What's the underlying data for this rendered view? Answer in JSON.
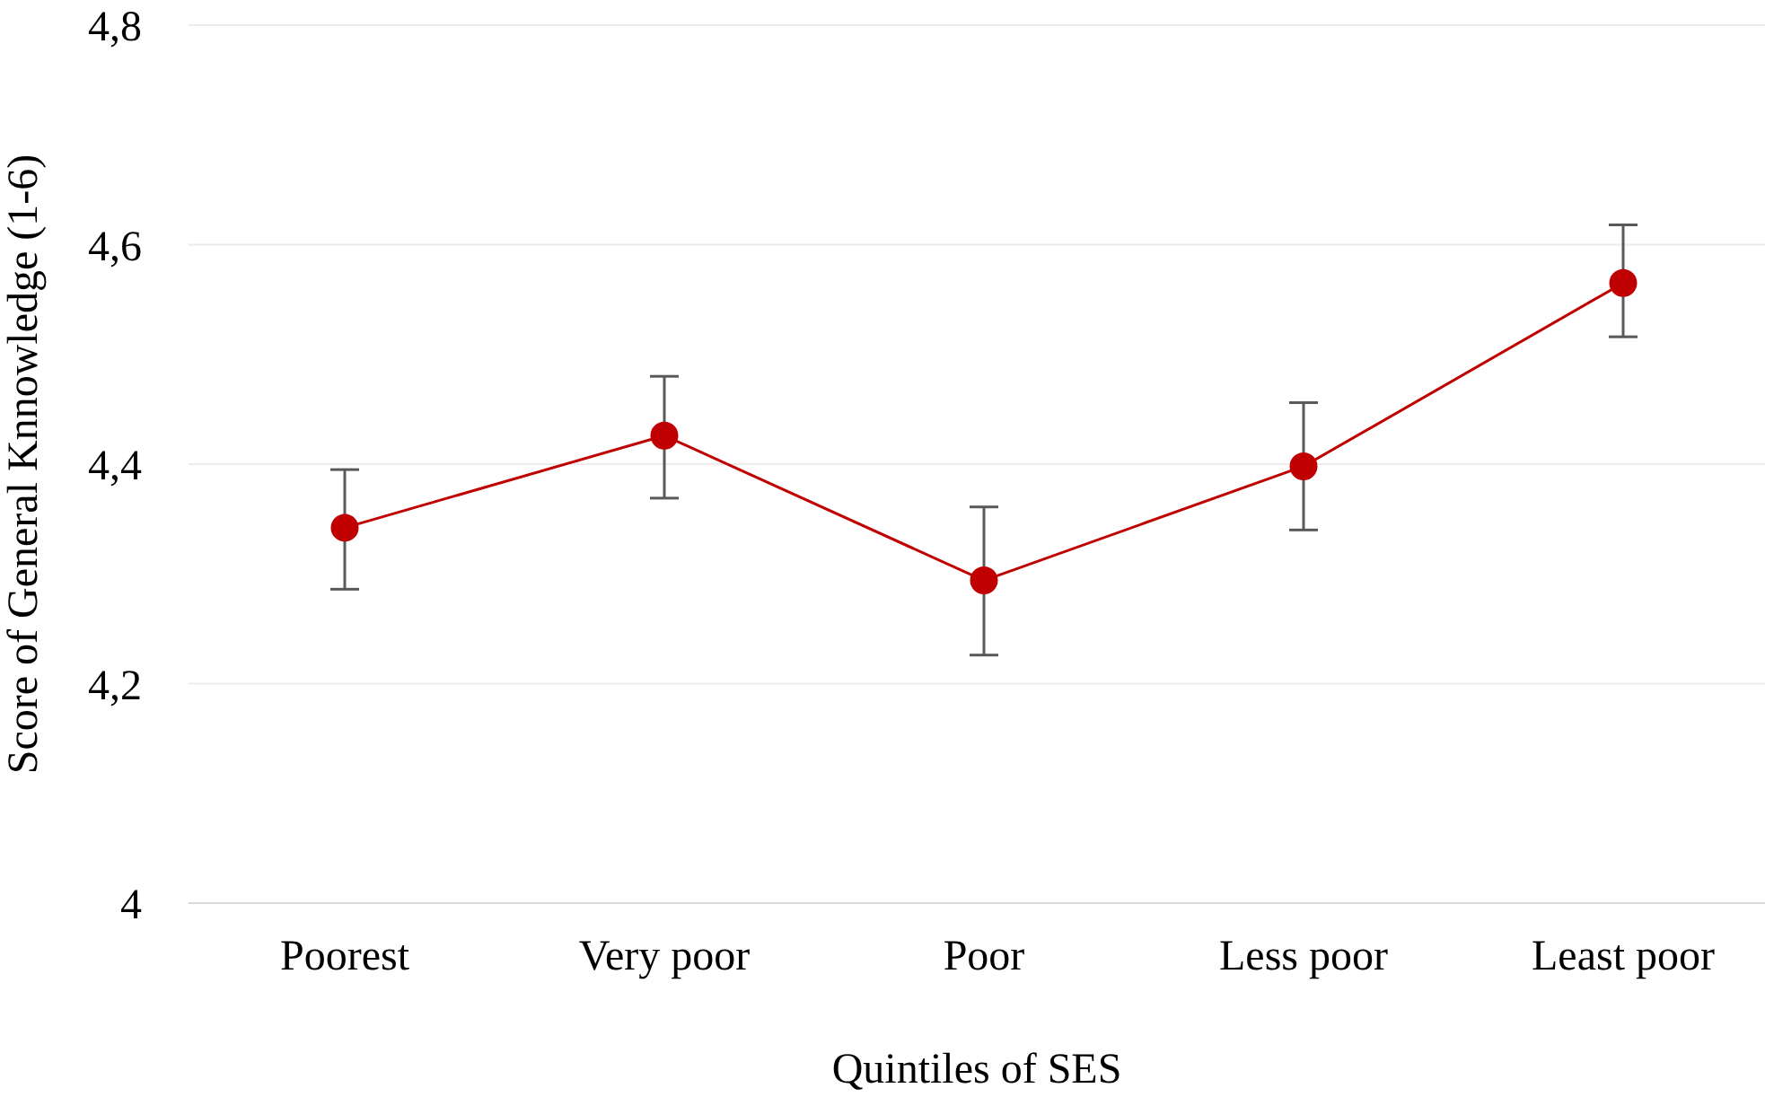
{
  "chart_data": {
    "type": "line",
    "xlabel": "Quintiles of SES",
    "ylabel": "Score of General Knnowledge (1-6)",
    "categories": [
      "Poorest",
      "Very poor",
      "Poor",
      "Less poor",
      "Least poor"
    ],
    "series": [
      {
        "color": "#c00000",
        "values": [
          4.342,
          4.426,
          4.294,
          4.398,
          4.565
        ],
        "errors": [
          [
            4.286,
            4.395
          ],
          [
            4.369,
            4.48
          ],
          [
            4.226,
            4.361
          ],
          [
            4.34,
            4.456
          ],
          [
            4.516,
            4.618
          ]
        ]
      }
    ],
    "ylim": [
      4,
      4.8
    ],
    "yticks": [
      4,
      {
        "value": 4.2,
        "label": "4,2"
      },
      {
        "value": 4.4,
        "label": "4,4"
      },
      {
        "value": 4.6,
        "label": "4,6"
      },
      {
        "value": 4.8,
        "label": "4,8"
      }
    ],
    "grid": "y",
    "marker": "circle",
    "line_style": "solid"
  }
}
